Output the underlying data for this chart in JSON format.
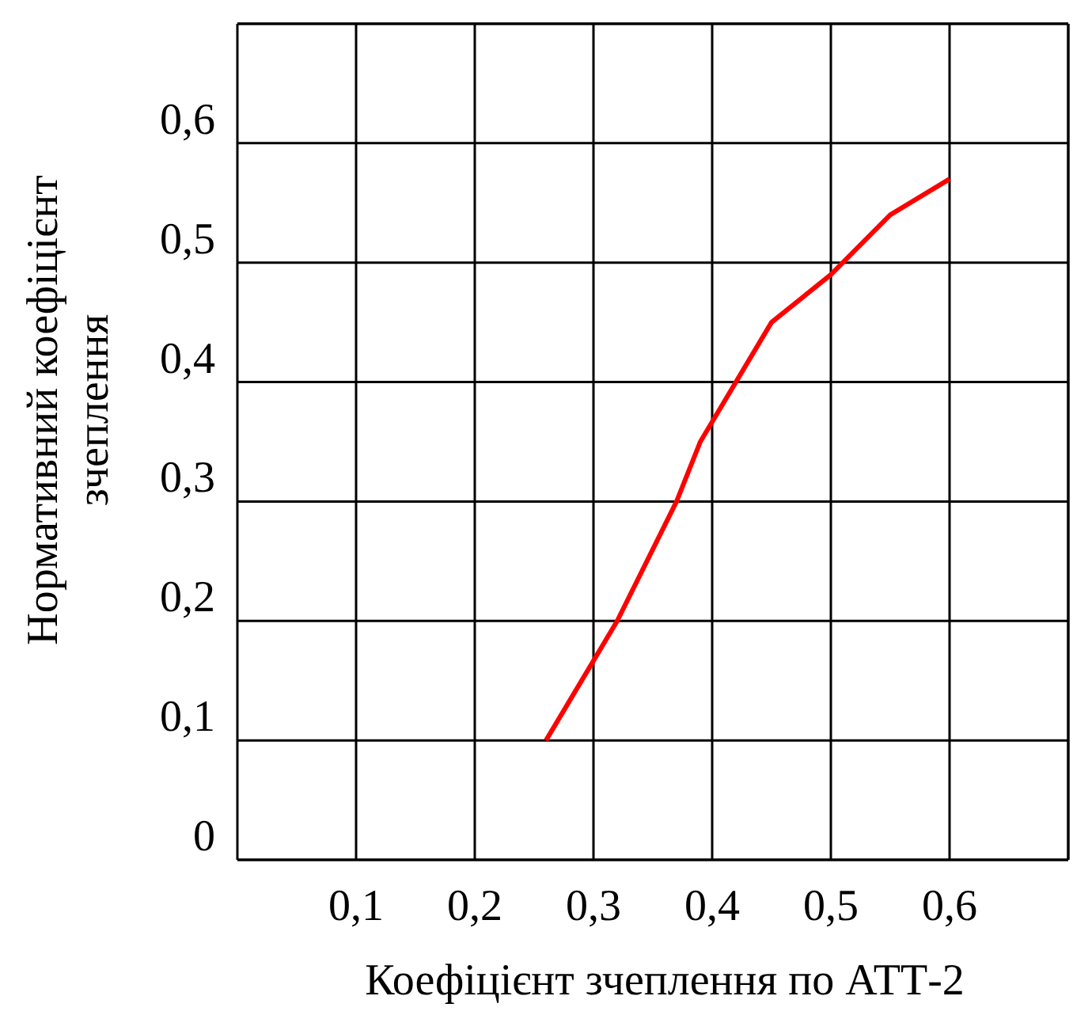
{
  "chart_data": {
    "type": "line",
    "xlabel": "Коефіцієнт зчеплення по АТТ-2",
    "ylabel": "Нормативний коефіцієнт зчеплення",
    "x": [
      0.26,
      0.32,
      0.37,
      0.39,
      0.45,
      0.5,
      0.55,
      0.6
    ],
    "series": [
      {
        "color": "#ff0000",
        "values": [
          0.1,
          0.2,
          0.3,
          0.35,
          0.45,
          0.49,
          0.54,
          0.57
        ]
      }
    ],
    "xlim": [
      0,
      0.7
    ],
    "ylim": [
      0,
      0.7
    ],
    "xticks": [
      {
        "value": 0.1,
        "label": "0,1"
      },
      {
        "value": 0.2,
        "label": "0,2"
      },
      {
        "value": 0.3,
        "label": "0,3"
      },
      {
        "value": 0.4,
        "label": "0,4"
      },
      {
        "value": 0.5,
        "label": "0,5"
      },
      {
        "value": 0.6,
        "label": "0,6"
      },
      {
        "value": 0.7,
        "label": null
      }
    ],
    "yticks": [
      0,
      {
        "value": 0.1,
        "label": "0,1"
      },
      {
        "value": 0.2,
        "label": "0,2"
      },
      {
        "value": 0.3,
        "label": "0,3"
      },
      {
        "value": 0.4,
        "label": "0,4"
      },
      {
        "value": 0.5,
        "label": "0,5"
      },
      {
        "value": 0.6,
        "label": "0,6"
      },
      {
        "value": 0.7,
        "label": null
      }
    ],
    "grid": true,
    "marker": "none",
    "line_style": "solid"
  }
}
